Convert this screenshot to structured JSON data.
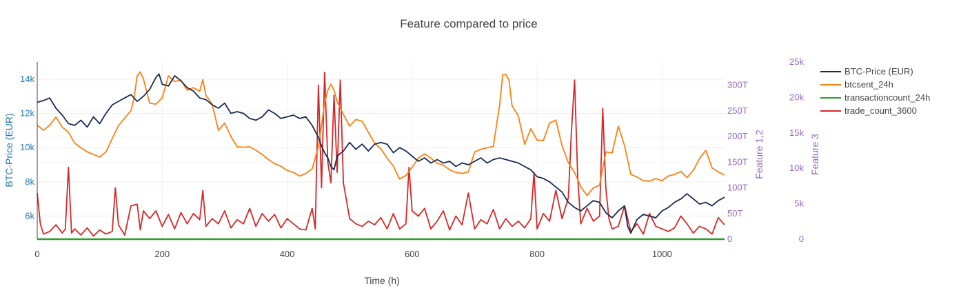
{
  "chart_data": {
    "type": "line",
    "title": "Feature compared to price",
    "xlabel": "Time (h)",
    "ylabel": "BTC-Price (EUR)",
    "y2label": "Feature 1,2",
    "y3label": "Feature 3",
    "xlim": [
      0,
      1100
    ],
    "ylim": [
      4650,
      15000
    ],
    "y2lim": [
      0,
      345
    ],
    "y3lim": [
      0,
      25000
    ],
    "x_ticks": [
      "0",
      "200",
      "400",
      "600",
      "800",
      "1000"
    ],
    "y_ticks": [
      "6k",
      "8k",
      "10k",
      "12k",
      "14k"
    ],
    "y2_ticks": [
      "0",
      "50T",
      "100T",
      "150T",
      "200T",
      "250T",
      "300T"
    ],
    "y3_ticks": [
      "0",
      "5k",
      "10k",
      "15k",
      "20k",
      "25k"
    ],
    "grid": true,
    "legend_position": "top-right",
    "colors": {
      "price": "#1a2a4f",
      "sent": "#ff7f0e",
      "txcount": "#2ca02c",
      "trade": "#d62728",
      "left_axis": "#1f77b4",
      "right_axis": "#9467bd"
    },
    "series": [
      {
        "name": "BTC-Price (EUR)",
        "axis": "y",
        "x": [
          0,
          10,
          20,
          30,
          40,
          50,
          60,
          70,
          80,
          90,
          100,
          110,
          120,
          130,
          140,
          150,
          160,
          170,
          180,
          190,
          195,
          200,
          210,
          220,
          230,
          240,
          250,
          260,
          270,
          280,
          290,
          300,
          310,
          320,
          330,
          340,
          350,
          360,
          370,
          380,
          390,
          400,
          410,
          420,
          430,
          440,
          450,
          455,
          460,
          465,
          470,
          475,
          480,
          490,
          500,
          510,
          520,
          530,
          540,
          550,
          560,
          570,
          580,
          590,
          600,
          610,
          620,
          630,
          640,
          650,
          660,
          670,
          680,
          690,
          700,
          710,
          720,
          730,
          740,
          750,
          760,
          770,
          780,
          790,
          800,
          810,
          820,
          830,
          840,
          850,
          860,
          870,
          880,
          890,
          900,
          910,
          920,
          930,
          940,
          945,
          950,
          960,
          970,
          980,
          990,
          1000,
          1010,
          1020,
          1030,
          1040,
          1050,
          1060,
          1070,
          1080,
          1090,
          1100
        ],
        "y": [
          12650,
          12750,
          12900,
          12300,
          11900,
          11400,
          11300,
          11600,
          11200,
          11800,
          11400,
          12000,
          12500,
          12700,
          12900,
          13100,
          12700,
          13000,
          13400,
          14100,
          14300,
          13700,
          13600,
          14200,
          13900,
          13500,
          13300,
          12900,
          12800,
          12500,
          12300,
          12600,
          12000,
          12100,
          12000,
          11700,
          11600,
          11800,
          12200,
          12000,
          11700,
          11800,
          11900,
          11700,
          11800,
          11300,
          10600,
          10100,
          9700,
          9400,
          8900,
          8700,
          9500,
          9800,
          10300,
          9900,
          10200,
          9800,
          10200,
          10300,
          10200,
          9700,
          10000,
          9800,
          9500,
          9200,
          9400,
          9100,
          9300,
          9100,
          9200,
          8900,
          9100,
          9000,
          9200,
          9400,
          9100,
          9300,
          9400,
          9300,
          9200,
          9100,
          8900,
          8700,
          8300,
          8200,
          8000,
          7700,
          7400,
          6800,
          6500,
          6300,
          6600,
          6900,
          6800,
          6200,
          5900,
          6300,
          6600,
          5400,
          5000,
          5800,
          6100,
          6000,
          5900,
          6300,
          6500,
          6800,
          7000,
          7300,
          7000,
          6700,
          6800,
          6600,
          6900,
          7100
        ]
      },
      {
        "name": "btcsent_24h",
        "axis": "y2",
        "x": [
          0,
          10,
          20,
          30,
          40,
          50,
          60,
          70,
          80,
          90,
          100,
          110,
          120,
          130,
          140,
          150,
          155,
          160,
          165,
          170,
          180,
          190,
          200,
          210,
          220,
          230,
          240,
          250,
          260,
          265,
          270,
          280,
          290,
          300,
          310,
          320,
          330,
          340,
          350,
          360,
          370,
          380,
          390,
          400,
          410,
          420,
          430,
          440,
          450,
          460,
          465,
          470,
          475,
          480,
          490,
          500,
          510,
          520,
          530,
          540,
          550,
          560,
          570,
          580,
          590,
          600,
          610,
          620,
          630,
          640,
          650,
          660,
          670,
          680,
          690,
          700,
          710,
          720,
          730,
          740,
          745,
          750,
          755,
          760,
          770,
          780,
          790,
          800,
          810,
          820,
          830,
          840,
          850,
          860,
          870,
          880,
          890,
          900,
          910,
          920,
          930,
          940,
          950,
          960,
          970,
          980,
          990,
          1000,
          1010,
          1020,
          1030,
          1040,
          1050,
          1060,
          1070,
          1080,
          1090,
          1100
        ],
        "y": [
          222,
          212,
          222,
          238,
          218,
          208,
          187,
          178,
          170,
          165,
          160,
          170,
          196,
          221,
          236,
          250,
          275,
          318,
          326,
          312,
          265,
          263,
          275,
          318,
          307,
          310,
          290,
          295,
          288,
          311,
          280,
          263,
          212,
          226,
          200,
          180,
          179,
          180,
          173,
          165,
          155,
          147,
          142,
          134,
          130,
          123,
          128,
          137,
          180,
          264,
          290,
          302,
          290,
          268,
          243,
          220,
          233,
          230,
          208,
          187,
          176,
          158,
          142,
          117,
          124,
          140,
          158,
          166,
          158,
          148,
          144,
          135,
          130,
          128,
          131,
          170,
          175,
          178,
          181,
          261,
          320,
          321,
          310,
          260,
          240,
          185,
          215,
          193,
          192,
          226,
          232,
          182,
          149,
          130,
          102,
          85,
          100,
          105,
          170,
          168,
          220,
          182,
          126,
          121,
          114,
          113,
          118,
          114,
          123,
          126,
          132,
          120,
          134,
          157,
          173,
          139,
          131,
          125
        ]
      },
      {
        "name": "transactioncount_24h",
        "axis": "y3",
        "x": [
          0,
          1100
        ],
        "y": [
          0,
          0
        ]
      },
      {
        "name": "trade_count_3600",
        "axis": "y2",
        "x": [
          0,
          5,
          10,
          20,
          30,
          40,
          45,
          50,
          55,
          60,
          70,
          80,
          90,
          100,
          110,
          120,
          125,
          130,
          140,
          150,
          160,
          165,
          170,
          180,
          190,
          200,
          210,
          220,
          230,
          240,
          250,
          260,
          265,
          270,
          280,
          290,
          300,
          310,
          320,
          330,
          340,
          350,
          360,
          370,
          380,
          390,
          400,
          410,
          420,
          430,
          440,
          445,
          450,
          455,
          460,
          465,
          470,
          475,
          480,
          485,
          490,
          500,
          510,
          520,
          530,
          540,
          550,
          560,
          570,
          580,
          590,
          595,
          600,
          610,
          620,
          630,
          640,
          650,
          660,
          670,
          680,
          690,
          700,
          710,
          720,
          730,
          740,
          750,
          760,
          770,
          780,
          790,
          795,
          800,
          810,
          820,
          830,
          840,
          850,
          855,
          860,
          865,
          870,
          880,
          890,
          900,
          905,
          910,
          915,
          920,
          930,
          940,
          950,
          960,
          970,
          980,
          990,
          1000,
          1010,
          1020,
          1030,
          1040,
          1050,
          1060,
          1070,
          1080,
          1090,
          1100
        ],
        "y": [
          90,
          30,
          10,
          15,
          28,
          12,
          20,
          140,
          12,
          20,
          8,
          22,
          6,
          18,
          10,
          15,
          100,
          28,
          8,
          65,
          68,
          18,
          55,
          40,
          55,
          25,
          48,
          20,
          52,
          30,
          50,
          38,
          95,
          25,
          40,
          30,
          55,
          22,
          38,
          30,
          60,
          25,
          50,
          35,
          48,
          22,
          40,
          30,
          20,
          18,
          60,
          20,
          300,
          100,
          325,
          150,
          110,
          280,
          130,
          310,
          110,
          40,
          30,
          25,
          35,
          28,
          42,
          20,
          50,
          20,
          30,
          140,
          55,
          45,
          60,
          20,
          35,
          55,
          18,
          45,
          28,
          90,
          20,
          38,
          30,
          58,
          20,
          40,
          25,
          35,
          22,
          40,
          130,
          20,
          50,
          35,
          95,
          40,
          80,
          210,
          310,
          120,
          30,
          60,
          35,
          45,
          255,
          100,
          40,
          20,
          25,
          65,
          15,
          30,
          10,
          50,
          25,
          20,
          15,
          22,
          45,
          30,
          12,
          25,
          20,
          10,
          42,
          28
        ]
      }
    ]
  }
}
